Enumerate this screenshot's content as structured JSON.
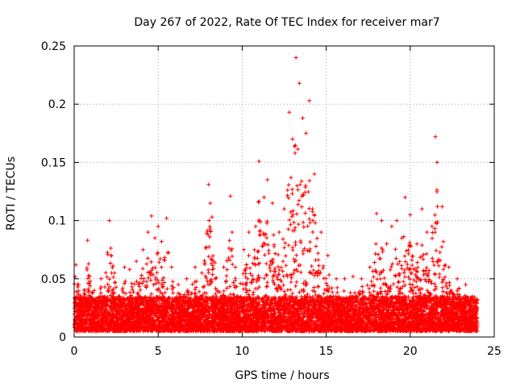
{
  "chart_data": {
    "type": "scatter",
    "title": "Day 267 of 2022, Rate Of TEC Index for receiver mar7",
    "xlabel": "GPS time / hours",
    "ylabel": "ROTI / TECUs",
    "xlim": [
      0,
      25
    ],
    "ylim": [
      0,
      0.25
    ],
    "x_ticks": [
      "0",
      "5",
      "10",
      "15",
      "20",
      "25"
    ],
    "y_ticks": [
      "0",
      "0.05",
      "0.1",
      "0.15",
      "0.2",
      "0.25"
    ],
    "x_tick_values": [
      0,
      5,
      10,
      15,
      20,
      25
    ],
    "y_tick_values": [
      0,
      0.05,
      0.1,
      0.15,
      0.2,
      0.25
    ],
    "grid": true,
    "marker": "plus",
    "color": "#ff0000",
    "x_data_range": [
      0,
      24
    ],
    "series": [
      {
        "x": [
          0.1,
          0.2,
          0.8,
          1.2,
          1.6,
          2.1,
          2.2,
          2.4,
          3.0,
          3.3,
          3.7,
          4.1,
          4.4,
          4.6,
          4.8,
          5.0,
          5.2,
          5.5,
          5.8,
          6.2,
          6.7,
          7.2,
          7.6,
          8.0,
          8.1,
          8.2,
          8.4,
          8.9,
          9.3,
          9.4,
          9.6,
          10.1,
          10.4,
          10.8,
          11.0,
          11.3,
          11.5,
          11.8,
          12.2,
          12.5,
          12.8,
          13.0,
          13.2,
          13.4,
          13.6,
          13.8,
          14.0,
          14.3,
          14.7,
          15.1,
          15.6,
          16.1,
          16.6,
          17.1,
          17.6,
          18.0,
          18.3,
          18.6,
          18.9,
          19.2,
          19.5,
          19.7,
          20.0,
          20.4,
          20.7,
          21.0,
          21.3,
          21.5,
          21.6,
          21.9,
          22.3,
          22.8,
          23.3,
          23.8
        ],
        "y": [
          0.062,
          0.045,
          0.083,
          0.04,
          0.05,
          0.1,
          0.07,
          0.055,
          0.06,
          0.058,
          0.065,
          0.075,
          0.09,
          0.104,
          0.085,
          0.095,
          0.082,
          0.102,
          0.06,
          0.045,
          0.05,
          0.06,
          0.055,
          0.131,
          0.115,
          0.103,
          0.05,
          0.06,
          0.121,
          0.09,
          0.06,
          0.075,
          0.09,
          0.095,
          0.151,
          0.12,
          0.135,
          0.115,
          0.09,
          0.11,
          0.193,
          0.17,
          0.24,
          0.218,
          0.188,
          0.175,
          0.203,
          0.14,
          0.09,
          0.07,
          0.05,
          0.05,
          0.052,
          0.05,
          0.06,
          0.106,
          0.1,
          0.08,
          0.095,
          0.1,
          0.085,
          0.12,
          0.105,
          0.08,
          0.11,
          0.09,
          0.095,
          0.172,
          0.15,
          0.112,
          0.06,
          0.05,
          0.045,
          0.03
        ]
      }
    ],
    "baseline": {
      "description": "dense background noise between about 0.005 and 0.04 TECUs across 0-24 h",
      "y_range": [
        0.005,
        0.04
      ]
    }
  }
}
